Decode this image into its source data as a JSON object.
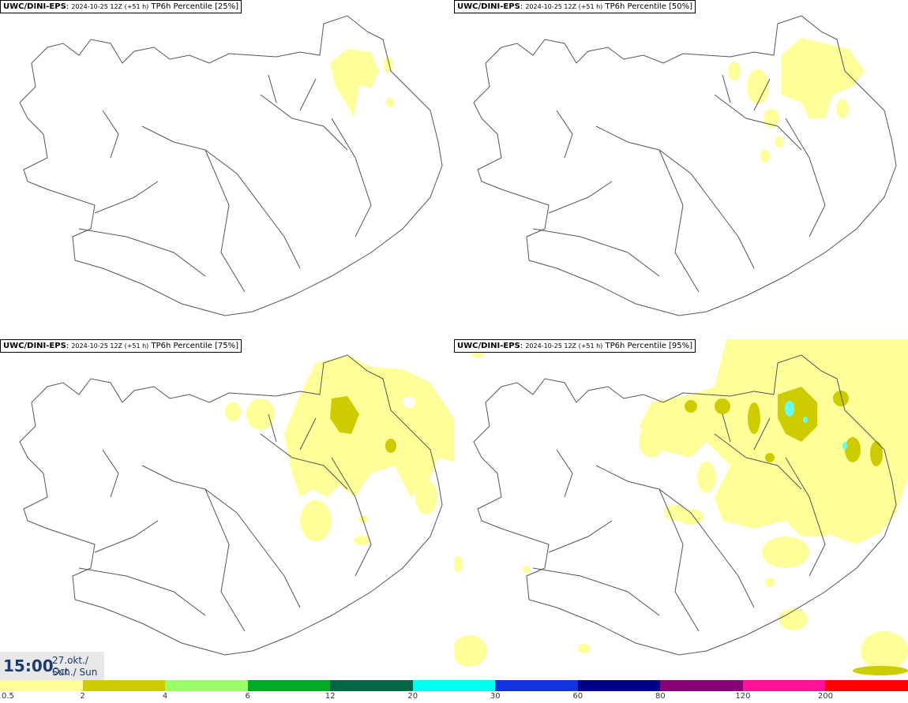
{
  "panels": [
    {
      "model": "UWC/DINI-EPS",
      "run": "2024-10-25 12Z (+51 h)",
      "label": "TP6h Percentile [25%]"
    },
    {
      "model": "UWC/DINI-EPS",
      "run": "2024-10-25 12Z (+51 h)",
      "label": "TP6h Percentile [50%]"
    },
    {
      "model": "UWC/DINI-EPS",
      "run": "2024-10-25 12Z (+51 h)",
      "label": "TP6h Percentile [75%]"
    },
    {
      "model": "UWC/DINI-EPS",
      "run": "2024-10-25 12Z (+51 h)",
      "label": "TP6h Percentile [95%]"
    }
  ],
  "valid": {
    "time": "15:00",
    "date": "27.okt./ Oct",
    "day": "Sun./ Sun"
  },
  "legend": {
    "colors": [
      "#ffff99",
      "#cccc00",
      "#99ff66",
      "#00aa22",
      "#006644",
      "#00ffee",
      "#1133dd",
      "#000088",
      "#880077",
      "#ff1199",
      "#ff0000"
    ],
    "labels": [
      "0.5",
      "2",
      "4",
      "6",
      "12",
      "20",
      "30",
      "60",
      "80",
      "120",
      "200"
    ]
  },
  "map_legend_colors": {
    "light": "#ffff99",
    "olive": "#cccc00",
    "cyan": "#66ffee"
  }
}
